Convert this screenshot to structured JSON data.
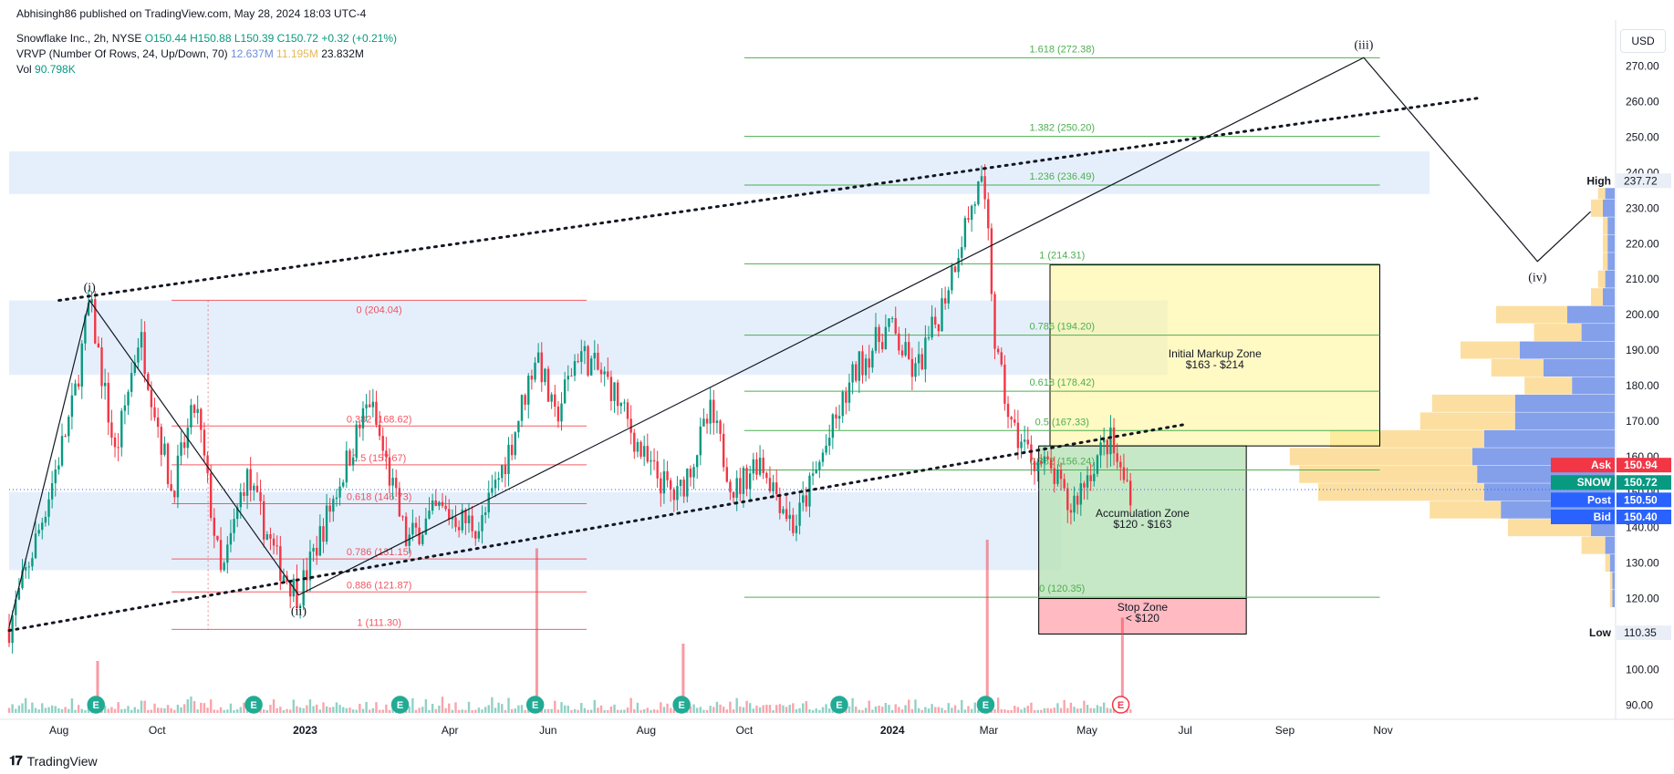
{
  "header": {
    "published": "Abhisingh86 published on TradingView.com, May 28, 2024 18:03 UTC-4",
    "symbol_line": "Snowflake Inc., 2h, NYSE",
    "ohlc": {
      "o": "O150.44",
      "h": "H150.88",
      "l": "L150.39",
      "c": "C150.72",
      "chg": "+0.32 (+0.21%)"
    },
    "vrvp_label": "VRVP (Number Of Rows, 24, Up/Down, 70)",
    "vrvp_v1": "12.637M",
    "vrvp_v2": "11.195M",
    "vrvp_v3": "23.832M",
    "vol_label": "Vol",
    "vol_value": "90.798K"
  },
  "currency_button": "USD",
  "footer": {
    "brand": "TradingView"
  },
  "colors": {
    "green_fib": "#4caf50",
    "red_fib": "#f23645",
    "zone_blue": "#dceaf9",
    "markup_zone": "#fff59d",
    "accumulation_zone": "#b9e2b8",
    "stop_zone": "#ffb3bb",
    "candle_up": "#089981",
    "candle_down": "#f23645",
    "vp_up": "#6e8fe8",
    "vp_down": "#fbd277"
  },
  "chart_data": {
    "type": "candlestick",
    "symbol": "SNOW",
    "timeframe": "2h",
    "x_labels": [
      "Aug",
      "Oct",
      "2023",
      "Apr",
      "Jun",
      "Aug",
      "Oct",
      "2024",
      "Mar",
      "May",
      "Jul",
      "Sep",
      "Nov"
    ],
    "x_label_dates": [
      "2022-08",
      "2022-10",
      "2023-01",
      "2023-04",
      "2023-06",
      "2023-08",
      "2023-10",
      "2024-01",
      "2024-03",
      "2024-05",
      "2024-07",
      "2024-09",
      "2024-11"
    ],
    "y_ticks": [
      90,
      100,
      110,
      120,
      130,
      140,
      150,
      160,
      170,
      180,
      190,
      200,
      210,
      220,
      230,
      240,
      250,
      260,
      270
    ],
    "y_range": [
      87,
      283
    ],
    "price_path": [
      [
        "2022-07-01",
        112
      ],
      [
        "2022-07-20",
        140
      ],
      [
        "2022-08-10",
        175
      ],
      [
        "2022-08-20",
        204
      ],
      [
        "2022-09-05",
        160
      ],
      [
        "2022-09-20",
        195
      ],
      [
        "2022-10-10",
        150
      ],
      [
        "2022-10-25",
        175
      ],
      [
        "2022-11-10",
        125
      ],
      [
        "2022-11-25",
        155
      ],
      [
        "2022-12-15",
        130
      ],
      [
        "2022-12-28",
        121
      ],
      [
        "2023-01-20",
        150
      ],
      [
        "2023-02-10",
        176
      ],
      [
        "2023-03-05",
        136
      ],
      [
        "2023-03-25",
        145
      ],
      [
        "2023-04-20",
        140
      ],
      [
        "2023-05-10",
        165
      ],
      [
        "2023-05-25",
        190
      ],
      [
        "2023-06-05",
        170
      ],
      [
        "2023-06-20",
        190
      ],
      [
        "2023-07-10",
        180
      ],
      [
        "2023-08-01",
        158
      ],
      [
        "2023-08-20",
        148
      ],
      [
        "2023-09-10",
        172
      ],
      [
        "2023-09-25",
        150
      ],
      [
        "2023-10-10",
        160
      ],
      [
        "2023-11-01",
        140
      ],
      [
        "2023-11-20",
        162
      ],
      [
        "2023-12-10",
        185
      ],
      [
        "2023-12-30",
        197
      ],
      [
        "2024-01-15",
        183
      ],
      [
        "2024-01-30",
        200
      ],
      [
        "2024-02-15",
        225
      ],
      [
        "2024-02-25",
        237
      ],
      [
        "2024-03-01",
        220
      ],
      [
        "2024-03-05",
        190
      ],
      [
        "2024-03-15",
        168
      ],
      [
        "2024-03-28",
        160
      ],
      [
        "2024-04-10",
        155
      ],
      [
        "2024-04-20",
        145
      ],
      [
        "2024-05-05",
        158
      ],
      [
        "2024-05-15",
        165
      ],
      [
        "2024-05-22",
        155
      ],
      [
        "2024-05-28",
        150.72
      ]
    ],
    "fib_extension_green": [
      {
        "label": "1.618 (272.38)",
        "price": 272.38
      },
      {
        "label": "1.382 (250.20)",
        "price": 250.2
      },
      {
        "label": "1.236 (236.49)",
        "price": 236.49
      },
      {
        "label": "1 (214.31)",
        "price": 214.31
      },
      {
        "label": "0.786 (194.20)",
        "price": 194.2
      },
      {
        "label": "0.618 (178.42)",
        "price": 178.42
      },
      {
        "label": "0.5 (167.33)",
        "price": 167.33
      },
      {
        "label": "0.382 (156.24)",
        "price": 156.24
      },
      {
        "label": "0 (120.35)",
        "price": 120.35
      }
    ],
    "fib_retracement_red": [
      {
        "label": "0 (204.04)",
        "price": 204.04
      },
      {
        "label": "0.382 (168.62)",
        "price": 168.62
      },
      {
        "label": "0.5 (157.67)",
        "price": 157.67
      },
      {
        "label": "0.618 (146.73)",
        "price": 146.73
      },
      {
        "label": "0.786 (131.15)",
        "price": 131.15
      },
      {
        "label": "0.886 (121.87)",
        "price": 121.87
      },
      {
        "label": "1 (111.30)",
        "price": 111.3
      }
    ],
    "zones": [
      {
        "name": "Initial Markup Zone",
        "range_label": "$163 - $214",
        "low": 163,
        "high": 214,
        "start": "2024-04-08",
        "end": "2024-10-30"
      },
      {
        "name": "Accumulation Zone",
        "range_label": "$120 - $163",
        "low": 120,
        "high": 163,
        "start": "2024-04-01",
        "end": "2024-08-08"
      },
      {
        "name": "Stop Zone",
        "range_label": "< $120",
        "low": 110,
        "high": 120,
        "start": "2024-04-01",
        "end": "2024-08-08"
      }
    ],
    "supply_bands": [
      {
        "low": 234,
        "high": 246,
        "start": "2022-07-01",
        "end": "2024-11-30"
      },
      {
        "low": 183,
        "high": 204,
        "start": "2022-07-01",
        "end": "2024-06-20"
      },
      {
        "low": 128,
        "high": 150,
        "start": "2022-07-01",
        "end": "2024-04-15"
      }
    ],
    "wave_labels": [
      {
        "label": "(i)",
        "date": "2022-08-20",
        "price": 204
      },
      {
        "label": "(ii)",
        "date": "2022-12-28",
        "price": 121
      },
      {
        "label": "(iii)",
        "date": "2024-10-20",
        "price": 272.4
      },
      {
        "label": "(iv)",
        "date": "2025-02-05",
        "price": 215
      }
    ],
    "projection_path": [
      [
        "2022-07-01",
        112
      ],
      [
        "2022-08-20",
        204
      ],
      [
        "2022-12-28",
        121
      ],
      [
        "2024-10-20",
        272.4
      ],
      [
        "2025-02-05",
        215
      ],
      [
        "2025-03-10",
        229
      ]
    ],
    "channel_lines": [
      {
        "from": [
          "2022-08-01",
          204
        ],
        "to": [
          "2024-12-30",
          261
        ]
      },
      {
        "from": [
          "2022-07-01",
          111
        ],
        "to": [
          "2024-06-30",
          169
        ]
      }
    ],
    "volume_profile": [
      {
        "price": 235,
        "up": 0.04,
        "down": 0.03
      },
      {
        "price": 230,
        "up": 0.05,
        "down": 0.05
      },
      {
        "price": 225,
        "up": 0.03,
        "down": 0.02
      },
      {
        "price": 220,
        "up": 0.03,
        "down": 0.02
      },
      {
        "price": 215,
        "up": 0.03,
        "down": 0.02
      },
      {
        "price": 210,
        "up": 0.04,
        "down": 0.03
      },
      {
        "price": 205,
        "up": 0.05,
        "down": 0.05
      },
      {
        "price": 200,
        "up": 0.2,
        "down": 0.3
      },
      {
        "price": 195,
        "up": 0.14,
        "down": 0.2
      },
      {
        "price": 190,
        "up": 0.4,
        "down": 0.25
      },
      {
        "price": 185,
        "up": 0.3,
        "down": 0.22
      },
      {
        "price": 180,
        "up": 0.18,
        "down": 0.2
      },
      {
        "price": 175,
        "up": 0.42,
        "down": 0.35
      },
      {
        "price": 170,
        "up": 0.42,
        "down": 0.4
      },
      {
        "price": 165,
        "up": 0.55,
        "down": 0.65
      },
      {
        "price": 160,
        "up": 0.6,
        "down": 0.77
      },
      {
        "price": 155,
        "up": 0.58,
        "down": 0.75
      },
      {
        "price": 150,
        "up": 0.55,
        "down": 0.7
      },
      {
        "price": 145,
        "up": 0.48,
        "down": 0.3
      },
      {
        "price": 140,
        "up": 0.1,
        "down": 0.35
      },
      {
        "price": 135,
        "up": 0.04,
        "down": 0.1
      },
      {
        "price": 130,
        "up": 0.02,
        "down": 0.02
      },
      {
        "price": 125,
        "up": 0.01,
        "down": 0.01
      },
      {
        "price": 120,
        "up": 0.01,
        "down": 0.01
      }
    ],
    "earnings_dates": [
      "2022-08-24",
      "2022-11-30",
      "2023-03-01",
      "2023-05-24",
      "2023-08-23",
      "2023-11-29",
      "2024-02-28",
      "2024-05-22"
    ],
    "volume_spikes": [
      {
        "date": "2023-05-25",
        "v": 0.95
      },
      {
        "date": "2024-02-29",
        "v": 1.0
      },
      {
        "date": "2024-05-23",
        "v": 0.55
      },
      {
        "date": "2023-08-24",
        "v": 0.4
      },
      {
        "date": "2022-08-25",
        "v": 0.3
      }
    ],
    "price_scale_labels": [
      {
        "tag": "High",
        "value": "237.72",
        "price": 237.72,
        "style": "plain"
      },
      {
        "tag": "Ask",
        "value": "150.94",
        "price": 157.6,
        "style": "red"
      },
      {
        "tag": "SNOW",
        "value": "150.72",
        "price": 152.7,
        "style": "teal"
      },
      {
        "tag": "Post",
        "value": "150.50",
        "price": 147.8,
        "style": "blue"
      },
      {
        "tag": "Bid",
        "value": "150.40",
        "price": 143.0,
        "style": "blue"
      },
      {
        "tag": "Low",
        "value": "110.35",
        "price": 110.35,
        "style": "plain"
      }
    ],
    "last_price": 150.72
  }
}
